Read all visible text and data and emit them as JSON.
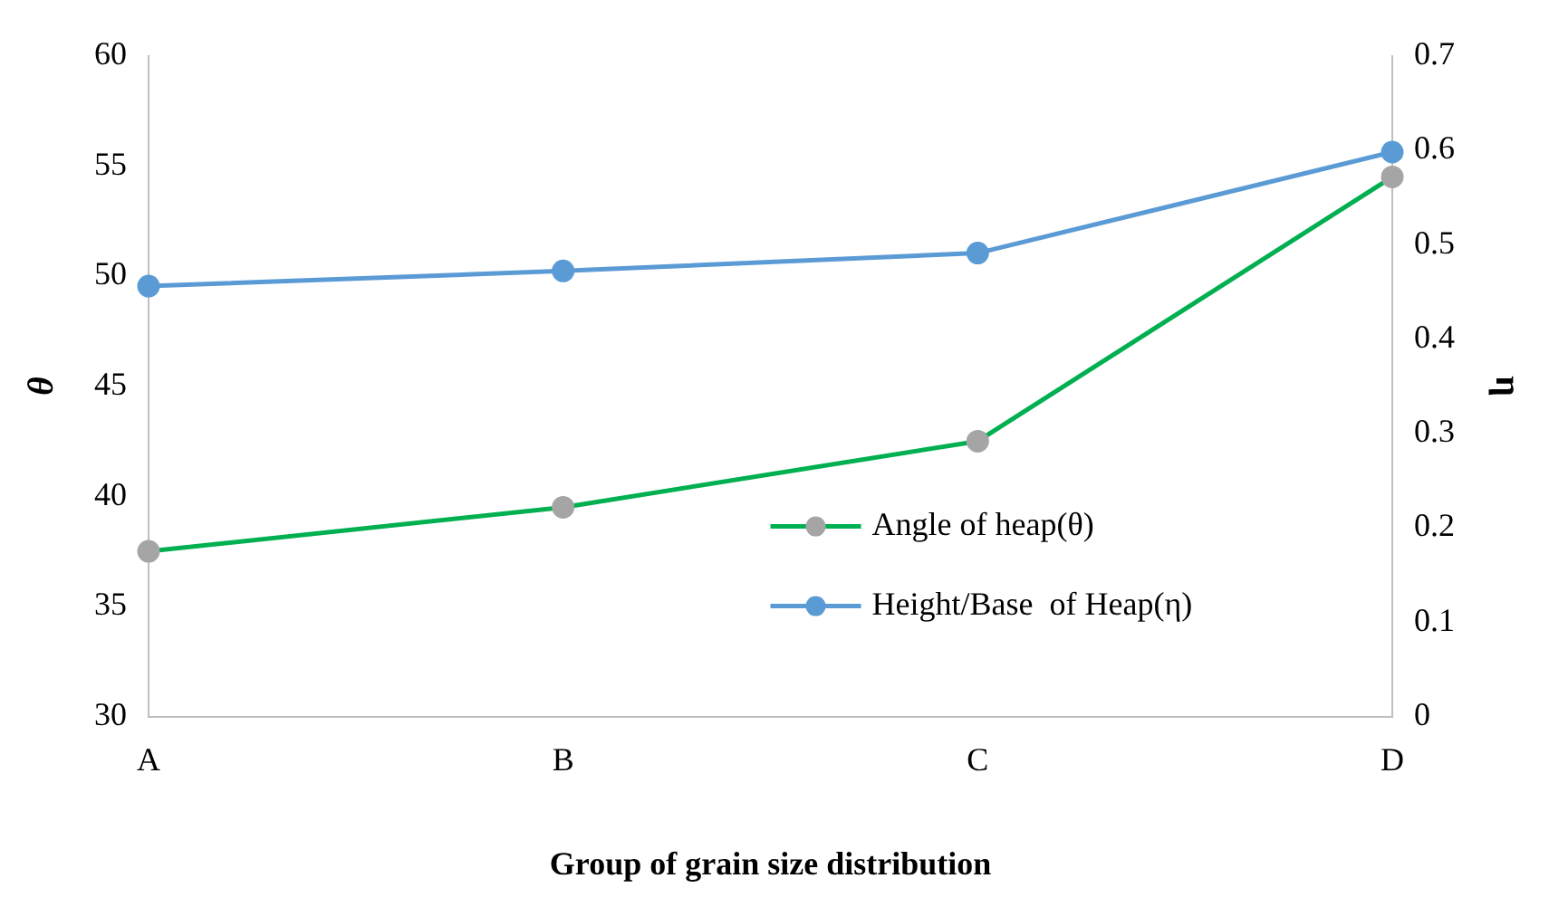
{
  "chart_data": {
    "type": "line",
    "xlabel": "Group of grain size distribution",
    "ylabel": "θ",
    "y2label": "η",
    "categories": [
      "A",
      "B",
      "C",
      "D"
    ],
    "series": [
      {
        "name": "Angle of heap(θ)",
        "color": "#00b050",
        "colors": [
          "#a5a5a5",
          "#a5a5a5",
          "#a5a5a5",
          "#a5a5a5"
        ],
        "values": [
          37.5,
          39.5,
          42.5,
          54.5
        ]
      },
      {
        "name": "Height/Base  of Heap(η)",
        "color": "#5b9bd5",
        "axis": "y2",
        "values": [
          0.456,
          0.472,
          0.491,
          0.598
        ]
      }
    ],
    "ylim": [
      30,
      60
    ],
    "yticks": [
      30,
      35,
      40,
      45,
      50,
      55,
      60
    ],
    "y2lim": [
      0,
      0.7
    ],
    "y2ticks": [
      0,
      0.1,
      0.2,
      0.3,
      0.4,
      0.5,
      0.6,
      0.7
    ],
    "grid": false,
    "legend": "bottom right",
    "marker": "circle",
    "line_style": "solid"
  }
}
